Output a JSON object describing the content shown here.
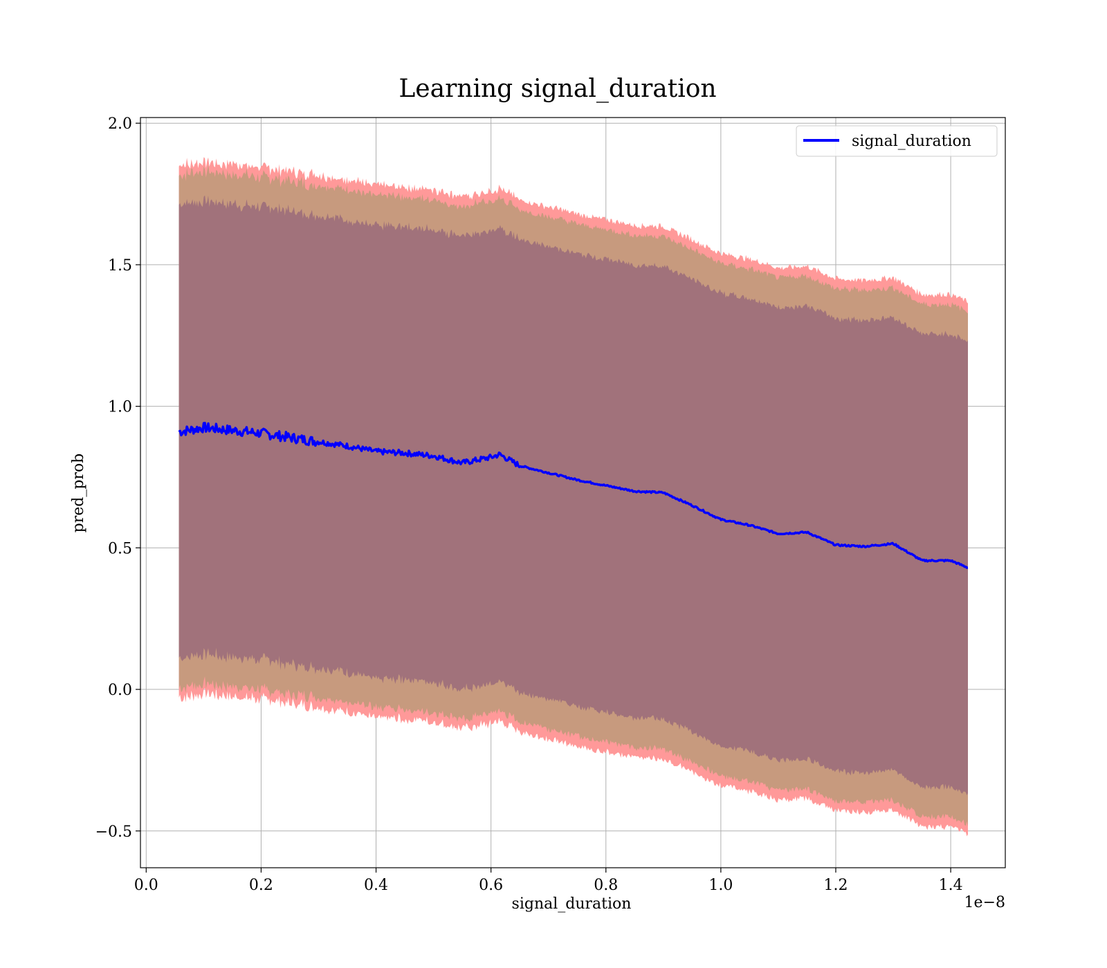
{
  "chart_data": {
    "type": "line",
    "title": "Learning signal_duration",
    "xlabel": "signal_duration",
    "ylabel": "pred_prob",
    "x_offset_text": "1e−8",
    "xlim": [
      -0.01,
      1.495
    ],
    "ylim": [
      -0.63,
      2.02
    ],
    "x_ticks": [
      0.0,
      0.2,
      0.4,
      0.6,
      0.8,
      1.0,
      1.2,
      1.4
    ],
    "x_tick_labels": [
      "0.0",
      "0.2",
      "0.4",
      "0.6",
      "0.8",
      "1.0",
      "1.2",
      "1.4"
    ],
    "y_ticks": [
      -0.5,
      0.0,
      0.5,
      1.0,
      1.5,
      2.0
    ],
    "y_tick_labels": [
      "−0.5",
      "0.0",
      "0.5",
      "1.0",
      "1.5",
      "2.0"
    ],
    "grid": true,
    "legend_position": "top-right",
    "colors": {
      "line": "#0000ff",
      "band_outer": "#ff9999",
      "band_middle": "#c79a7e",
      "band_inner": "#a1727b"
    },
    "series": [
      {
        "name": "signal_duration",
        "x": [
          0.057,
          0.1,
          0.15,
          0.2,
          0.25,
          0.3,
          0.35,
          0.4,
          0.45,
          0.5,
          0.55,
          0.6,
          0.615,
          0.65,
          0.7,
          0.75,
          0.8,
          0.85,
          0.9,
          0.95,
          1.0,
          1.05,
          1.1,
          1.15,
          1.2,
          1.25,
          1.3,
          1.35,
          1.4,
          1.43
        ],
        "y": [
          0.91,
          0.925,
          0.915,
          0.905,
          0.89,
          0.875,
          0.86,
          0.84,
          0.835,
          0.825,
          0.8,
          0.82,
          0.83,
          0.79,
          0.765,
          0.74,
          0.72,
          0.7,
          0.695,
          0.65,
          0.6,
          0.58,
          0.55,
          0.555,
          0.51,
          0.505,
          0.515,
          0.455,
          0.455,
          0.43
        ]
      }
    ],
    "bands": [
      {
        "offset": 0.94
      },
      {
        "offset": 0.905
      },
      {
        "offset": 0.8
      }
    ]
  }
}
